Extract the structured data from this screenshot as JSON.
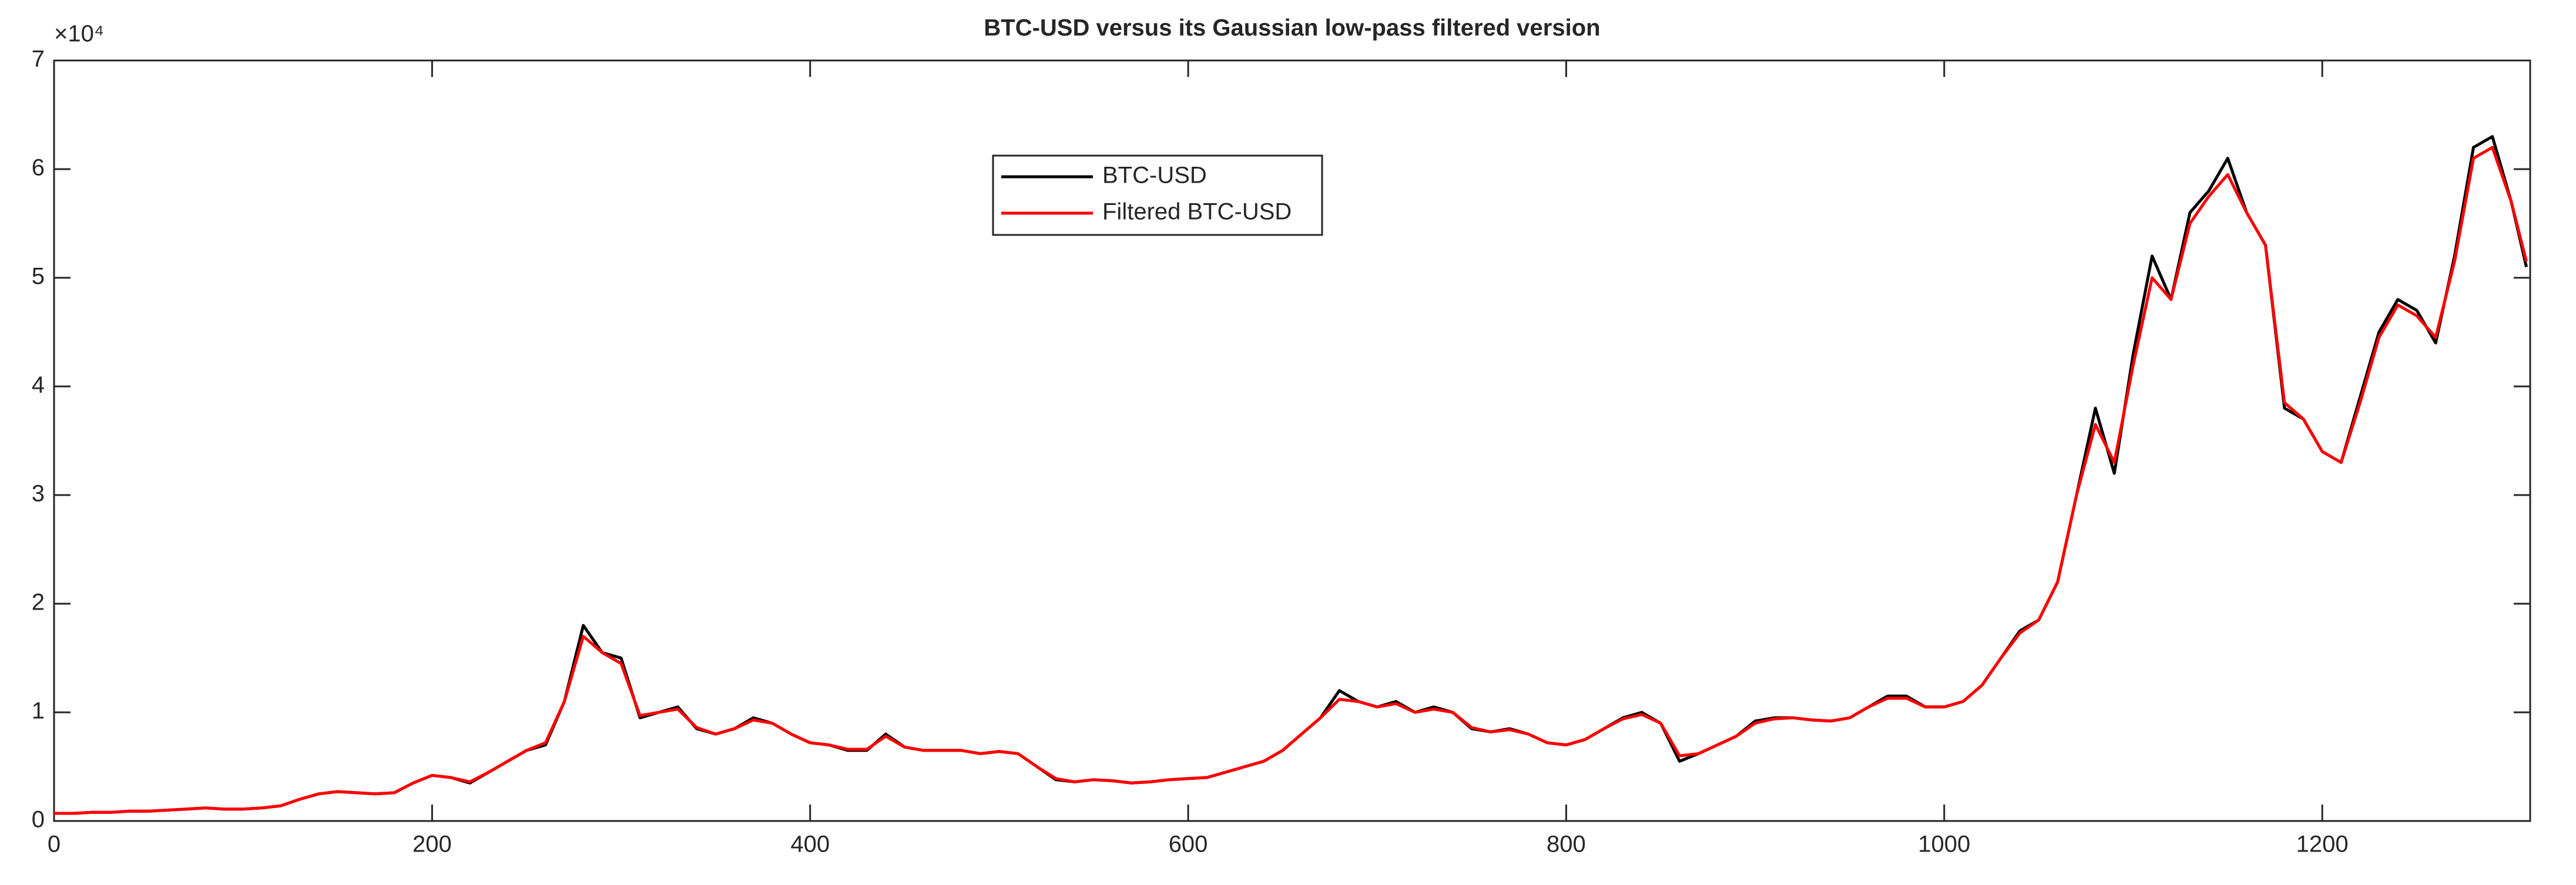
{
  "chart_data": {
    "type": "line",
    "title": "BTC-USD versus its Gaussian low-pass filtered version",
    "y_multiplier": "×10⁴",
    "x": [
      0,
      10,
      20,
      30,
      40,
      50,
      60,
      70,
      80,
      90,
      100,
      110,
      120,
      130,
      140,
      150,
      160,
      170,
      180,
      190,
      200,
      210,
      220,
      230,
      240,
      250,
      260,
      270,
      280,
      290,
      300,
      310,
      320,
      330,
      340,
      350,
      360,
      370,
      380,
      390,
      400,
      410,
      420,
      430,
      440,
      450,
      460,
      470,
      480,
      490,
      500,
      510,
      520,
      530,
      540,
      550,
      560,
      570,
      580,
      590,
      600,
      610,
      620,
      630,
      640,
      650,
      660,
      670,
      680,
      690,
      700,
      710,
      720,
      730,
      740,
      750,
      760,
      770,
      780,
      790,
      800,
      810,
      820,
      830,
      840,
      850,
      860,
      870,
      880,
      890,
      900,
      910,
      920,
      930,
      940,
      950,
      960,
      970,
      980,
      990,
      1000,
      1010,
      1020,
      1030,
      1040,
      1050,
      1060,
      1070,
      1080,
      1090,
      1100,
      1110,
      1120,
      1130,
      1140,
      1150,
      1160,
      1170,
      1180,
      1190,
      1200,
      1210,
      1220,
      1230,
      1240,
      1250,
      1260,
      1270,
      1280,
      1290,
      1300,
      1308
    ],
    "series": [
      {
        "name": "BTC-USD",
        "color": "#000000",
        "values": [
          0.07,
          0.07,
          0.08,
          0.08,
          0.09,
          0.09,
          0.1,
          0.11,
          0.12,
          0.11,
          0.11,
          0.12,
          0.14,
          0.2,
          0.25,
          0.27,
          0.26,
          0.25,
          0.26,
          0.35,
          0.42,
          0.4,
          0.35,
          0.45,
          0.55,
          0.65,
          0.7,
          1.1,
          1.8,
          1.55,
          1.5,
          0.95,
          1.0,
          1.05,
          0.85,
          0.8,
          0.85,
          0.95,
          0.9,
          0.8,
          0.72,
          0.7,
          0.65,
          0.65,
          0.8,
          0.68,
          0.65,
          0.65,
          0.65,
          0.62,
          0.64,
          0.62,
          0.5,
          0.38,
          0.36,
          0.38,
          0.37,
          0.35,
          0.36,
          0.38,
          0.39,
          0.4,
          0.45,
          0.5,
          0.55,
          0.65,
          0.8,
          0.95,
          1.2,
          1.1,
          1.05,
          1.1,
          1.0,
          1.05,
          1.0,
          0.85,
          0.82,
          0.85,
          0.8,
          0.72,
          0.7,
          0.75,
          0.85,
          0.95,
          1.0,
          0.9,
          0.55,
          0.62,
          0.7,
          0.78,
          0.92,
          0.95,
          0.95,
          0.93,
          0.92,
          0.95,
          1.05,
          1.15,
          1.15,
          1.05,
          1.05,
          1.1,
          1.25,
          1.5,
          1.75,
          1.85,
          2.2,
          3.0,
          3.8,
          3.2,
          4.3,
          5.2,
          4.8,
          5.6,
          5.8,
          6.1,
          5.6,
          5.3,
          3.8,
          3.7,
          3.4,
          3.3,
          3.9,
          4.5,
          4.8,
          4.7,
          4.4,
          5.2,
          6.2,
          6.3,
          5.7,
          5.1
        ]
      },
      {
        "name": "Filtered BTC-USD",
        "color": "#ff0000",
        "values": [
          0.07,
          0.07,
          0.08,
          0.08,
          0.09,
          0.09,
          0.1,
          0.11,
          0.12,
          0.11,
          0.11,
          0.12,
          0.14,
          0.2,
          0.25,
          0.27,
          0.26,
          0.25,
          0.26,
          0.35,
          0.42,
          0.4,
          0.36,
          0.45,
          0.55,
          0.65,
          0.72,
          1.1,
          1.7,
          1.55,
          1.45,
          0.97,
          1.0,
          1.03,
          0.86,
          0.8,
          0.85,
          0.93,
          0.9,
          0.8,
          0.72,
          0.7,
          0.66,
          0.66,
          0.78,
          0.68,
          0.65,
          0.65,
          0.65,
          0.62,
          0.64,
          0.62,
          0.5,
          0.39,
          0.36,
          0.38,
          0.37,
          0.35,
          0.36,
          0.38,
          0.39,
          0.4,
          0.45,
          0.5,
          0.55,
          0.65,
          0.8,
          0.95,
          1.12,
          1.1,
          1.05,
          1.08,
          1.0,
          1.03,
          1.0,
          0.86,
          0.82,
          0.84,
          0.8,
          0.72,
          0.7,
          0.75,
          0.85,
          0.94,
          0.98,
          0.9,
          0.6,
          0.62,
          0.7,
          0.78,
          0.9,
          0.94,
          0.95,
          0.93,
          0.92,
          0.95,
          1.05,
          1.13,
          1.13,
          1.05,
          1.05,
          1.1,
          1.25,
          1.5,
          1.73,
          1.85,
          2.2,
          3.0,
          3.65,
          3.3,
          4.2,
          5.0,
          4.8,
          5.5,
          5.75,
          5.95,
          5.6,
          5.3,
          3.85,
          3.7,
          3.4,
          3.3,
          3.85,
          4.45,
          4.75,
          4.65,
          4.45,
          5.15,
          6.1,
          6.2,
          5.7,
          5.15
        ]
      }
    ],
    "xlim": [
      0,
      1310
    ],
    "xticks": [
      0,
      200,
      400,
      600,
      800,
      1000,
      1200
    ],
    "ylim": [
      0,
      7
    ],
    "yticks": [
      0,
      1,
      2,
      3,
      4,
      5,
      6,
      7
    ]
  }
}
